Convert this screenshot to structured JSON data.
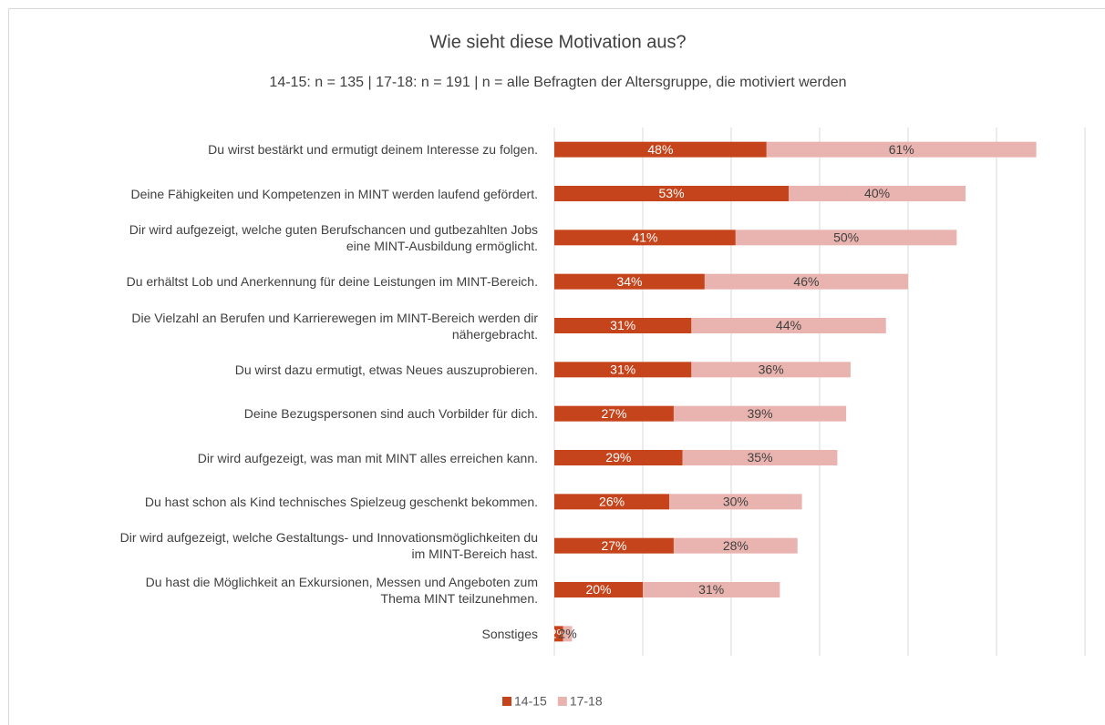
{
  "chart_data": {
    "type": "stacked-barh",
    "title": "Wie sieht diese Motivation aus?",
    "subtitle": "14-15: n = 135 | 17-18: n = 191 | n = alle Befragten der Altersgruppe, die motiviert werden",
    "categories": [
      "Du wirst bestärkt und ermutigt deinem Interesse zu folgen.",
      "Deine Fähigkeiten und Kompetenzen in MINT werden laufend gefördert.",
      "Dir wird aufgezeigt, welche guten Berufschancen und gutbezahlten Jobs\neine MINT-Ausbildung ermöglicht.",
      "Du erhältst Lob und Anerkennung für deine Leistungen im MINT-Bereich.",
      "Die Vielzahl an Berufen und Karrierewegen im MINT-Bereich werden dir\nnähergebracht.",
      "Du wirst dazu ermutigt, etwas Neues auszuprobieren.",
      "Deine Bezugspersonen sind auch Vorbilder für dich.",
      "Dir wird aufgezeigt, was man mit MINT alles erreichen kann.",
      "Du hast schon als Kind technisches Spielzeug geschenkt bekommen.",
      "Dir wird aufgezeigt, welche Gestaltungs- und Innovationsmöglichkeiten du\nim MINT-Bereich hast.",
      "Du hast die Möglichkeit an Exkursionen, Messen und Angeboten zum\nThema MINT teilzunehmen.",
      "Sonstiges"
    ],
    "series": [
      {
        "name": "14-15",
        "color": "#c5441b",
        "label_color": "#ffffff",
        "values": [
          48,
          53,
          41,
          34,
          31,
          31,
          27,
          29,
          26,
          27,
          20,
          2
        ],
        "value_labels": [
          "48%",
          "53%",
          "41%",
          "34%",
          "31%",
          "31%",
          "27%",
          "29%",
          "26%",
          "27%",
          "20%",
          "2%"
        ]
      },
      {
        "name": "17-18",
        "color": "#e9b4af",
        "label_color": "#404040",
        "values": [
          61,
          40,
          50,
          46,
          44,
          36,
          39,
          35,
          30,
          28,
          31,
          2
        ],
        "value_labels": [
          "61%",
          "40%",
          "50%",
          "46%",
          "44%",
          "36%",
          "39%",
          "35%",
          "30%",
          "28%",
          "31%",
          "2%"
        ]
      }
    ],
    "xlim": [
      0,
      120
    ],
    "xticks": [
      0,
      20,
      40,
      60,
      80,
      100,
      120
    ],
    "grid": true,
    "legend": "bottom"
  }
}
